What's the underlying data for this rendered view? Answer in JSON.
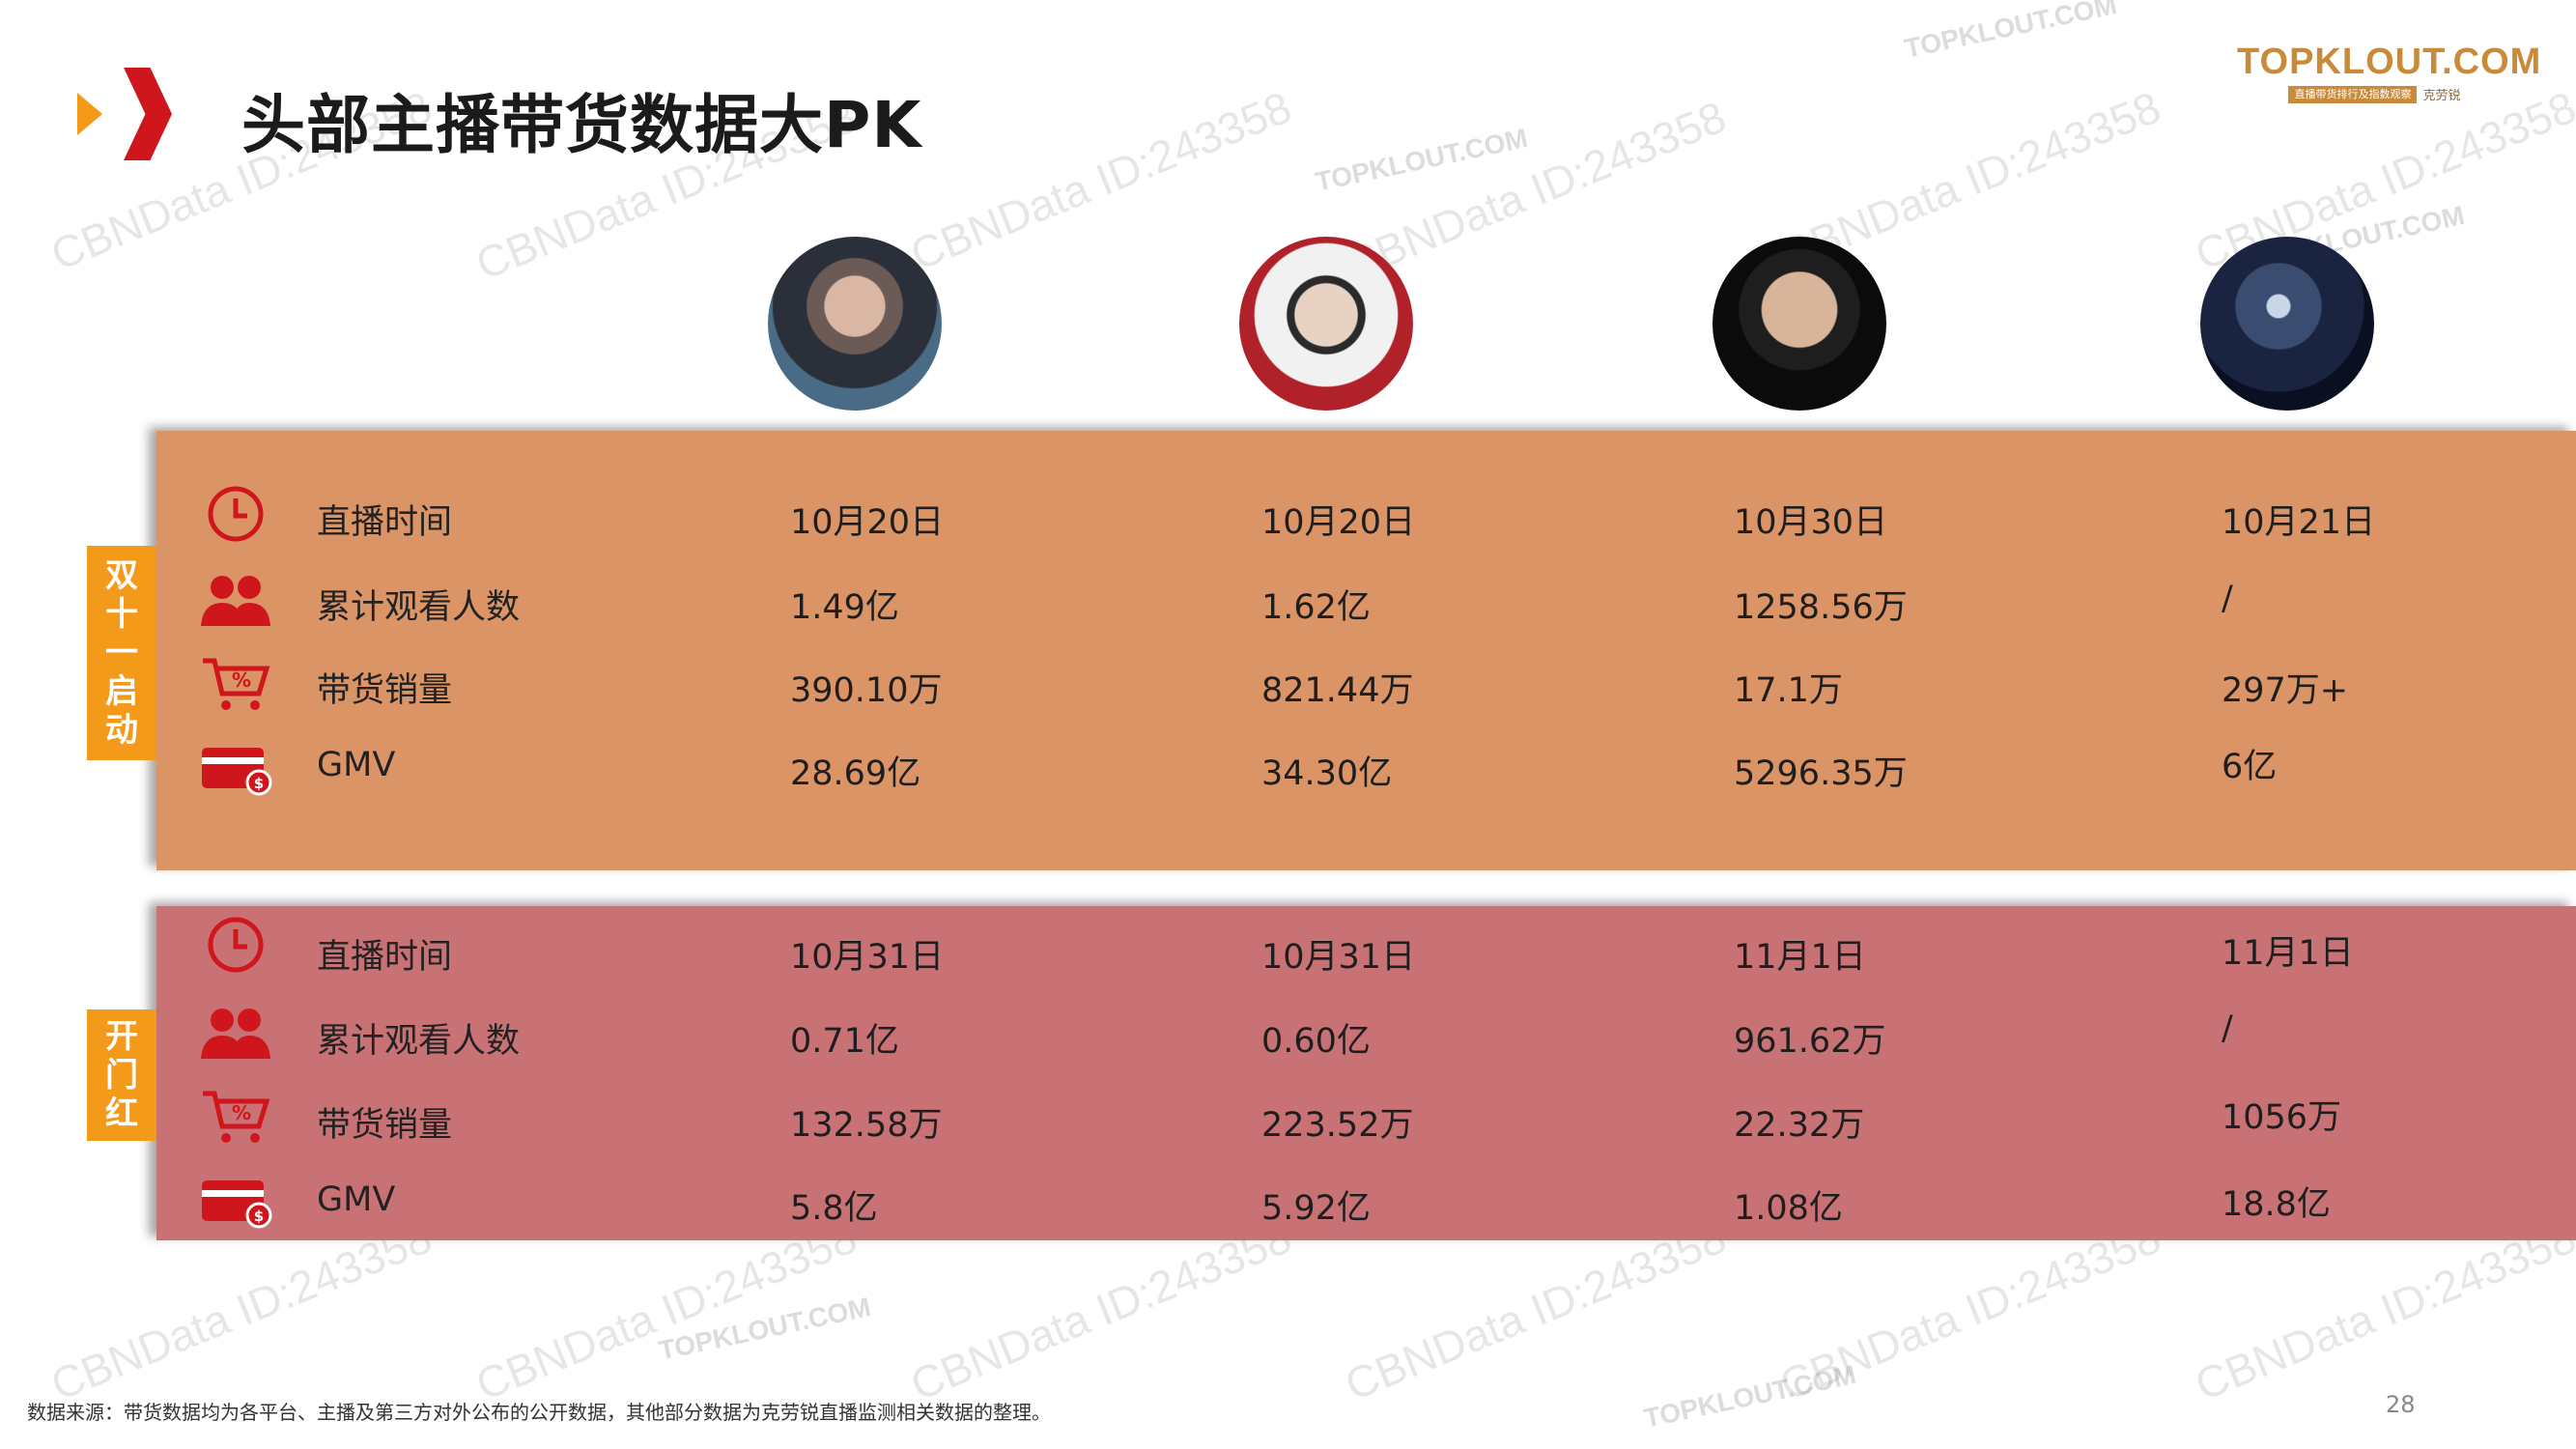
{
  "title": "头部主播带货数据大PK",
  "logo": {
    "main": "TOPKLOUT.COM",
    "sub": "直播带货排行及指数观察",
    "brand_cn": "克劳锐"
  },
  "colors": {
    "accent_red": "#d0161d",
    "accent_orange": "#f39a1b",
    "panel_orange": "#db9465",
    "panel_pink": "#c97275",
    "icon_red": "#d0161d"
  },
  "sections": [
    {
      "tag": [
        "双",
        "十",
        "一",
        "启",
        "动"
      ],
      "rows": [
        {
          "icon": "clock-icon",
          "label": "直播时间",
          "values": [
            "10月20日",
            "10月20日",
            "10月30日",
            "10月21日"
          ]
        },
        {
          "icon": "people-icon",
          "label": "累计观看人数",
          "values": [
            "1.49亿",
            "1.62亿",
            "1258.56万",
            "/"
          ]
        },
        {
          "icon": "cart-icon",
          "label": "带货销量",
          "values": [
            "390.10万",
            "821.44万",
            "17.1万",
            "297万+"
          ]
        },
        {
          "icon": "card-icon",
          "label": "GMV",
          "values": [
            "28.69亿",
            "34.30亿",
            "5296.35万",
            "6亿"
          ]
        }
      ]
    },
    {
      "tag": [
        "开",
        "门",
        "红"
      ],
      "rows": [
        {
          "icon": "clock-icon",
          "label": "直播时间",
          "values": [
            "10月31日",
            "10月31日",
            "11月1日",
            "11月1日"
          ]
        },
        {
          "icon": "people-icon",
          "label": "累计观看人数",
          "values": [
            "0.71亿",
            "0.60亿",
            "961.62万",
            "/"
          ]
        },
        {
          "icon": "cart-icon",
          "label": "带货销量",
          "values": [
            "132.58万",
            "223.52万",
            "22.32万",
            "1056万"
          ]
        },
        {
          "icon": "card-icon",
          "label": "GMV",
          "values": [
            "5.8亿",
            "5.92亿",
            "1.08亿",
            "18.8亿"
          ]
        }
      ]
    }
  ],
  "watermark": {
    "cbn": "CBNData ID:243358",
    "topklout": "TOPKLOUT.COM"
  },
  "footer": {
    "source": "数据来源：带货数据均为各平台、主播及第三方对外公布的公开数据，其他部分数据为克劳锐直播监测相关数据的整理。",
    "page": "28"
  }
}
